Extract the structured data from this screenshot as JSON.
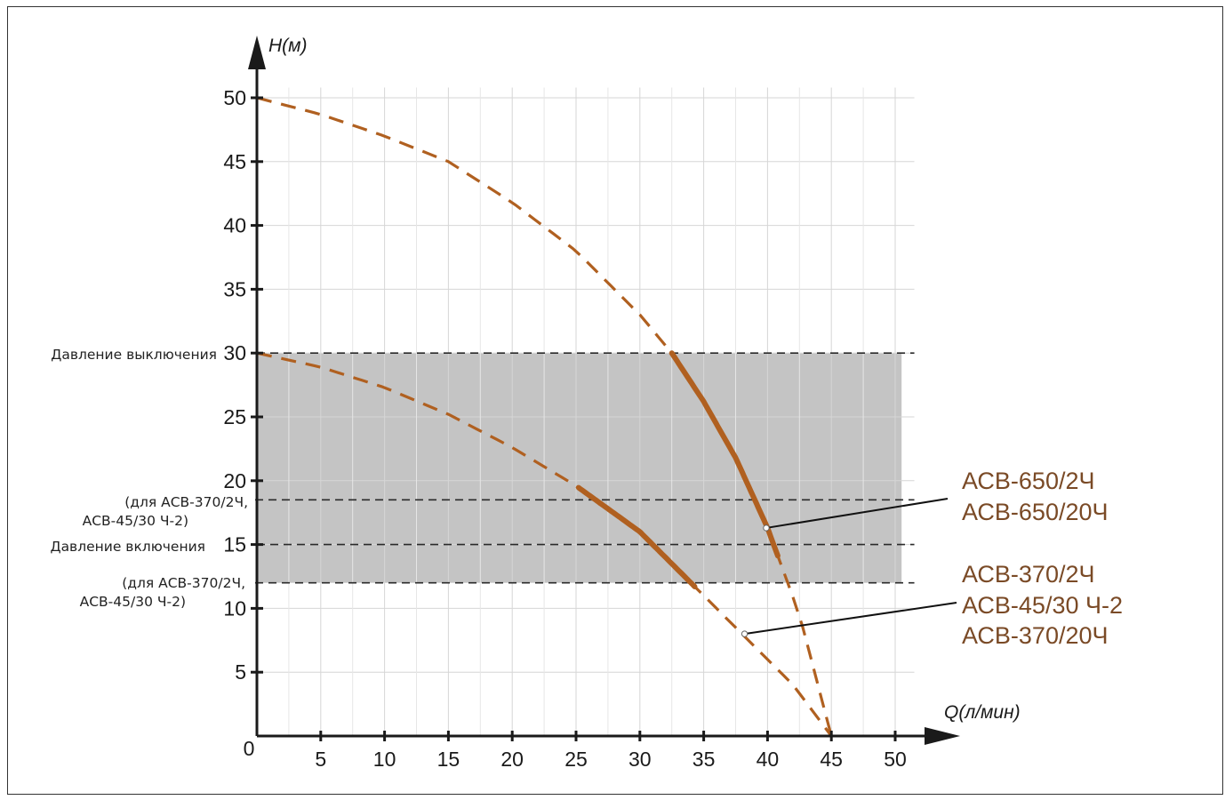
{
  "chart_data": {
    "type": "line",
    "xlabel": "Q(л/мин)",
    "ylabel": "H(м)",
    "xlim": [
      0,
      52
    ],
    "ylim": [
      0,
      55
    ],
    "x_ticks": [
      "5",
      "10",
      "15",
      "20",
      "25",
      "30",
      "35",
      "40",
      "45",
      "50"
    ],
    "y_ticks": [
      "5",
      "10",
      "15",
      "20",
      "25",
      "30",
      "35",
      "40",
      "45",
      "50"
    ],
    "origin_label": "0",
    "grid": true,
    "band": {
      "y_from": 12,
      "y_to": 30,
      "x_to": 50.5,
      "color": "#c4c4c4"
    },
    "reference_lines": [
      {
        "y": 30,
        "label": "Давление выключения",
        "label2": ""
      },
      {
        "y": 18.5,
        "label": "(для АСВ-370/2Ч,",
        "label2": "АСВ-45/30 Ч-2)"
      },
      {
        "y": 15,
        "label": "Давление включения",
        "label2": ""
      },
      {
        "y": 12,
        "label": "(для АСВ-370/2Ч,",
        "label2": "АСВ-45/30 Ч-2)"
      }
    ],
    "series": [
      {
        "color": "#b06020",
        "x": [
          0,
          5,
          10,
          15,
          20,
          25,
          30,
          32.5,
          35,
          37.5,
          40,
          42.5,
          45
        ],
        "y": [
          50,
          48.7,
          47,
          45,
          41.8,
          38,
          33,
          30,
          26.2,
          21.8,
          16.3,
          9.5,
          0
        ],
        "active_range": [
          32.5,
          40.8
        ],
        "callout": {
          "x": 39.9,
          "y": 16.3,
          "labels": [
            "АСВ-650/2Ч",
            "АСВ-650/20Ч"
          ]
        }
      },
      {
        "color": "#b06020",
        "x": [
          0,
          5,
          10,
          15,
          20,
          25,
          30,
          34,
          38,
          42,
          45
        ],
        "y": [
          30,
          28.9,
          27.3,
          25.2,
          22.6,
          19.6,
          16,
          12,
          8,
          4,
          0
        ],
        "active_range": [
          25.2,
          34.3
        ],
        "callout": {
          "x": 38.2,
          "y": 8,
          "labels": [
            "АСВ-370/2Ч",
            "АСВ-45/30 Ч-2",
            "АСВ-370/20Ч"
          ]
        }
      }
    ]
  },
  "colors": {
    "axis": "#1a1a1a",
    "grid": "#d6d6d6",
    "curve": "#b06020",
    "model_text": "#7a4a26"
  }
}
